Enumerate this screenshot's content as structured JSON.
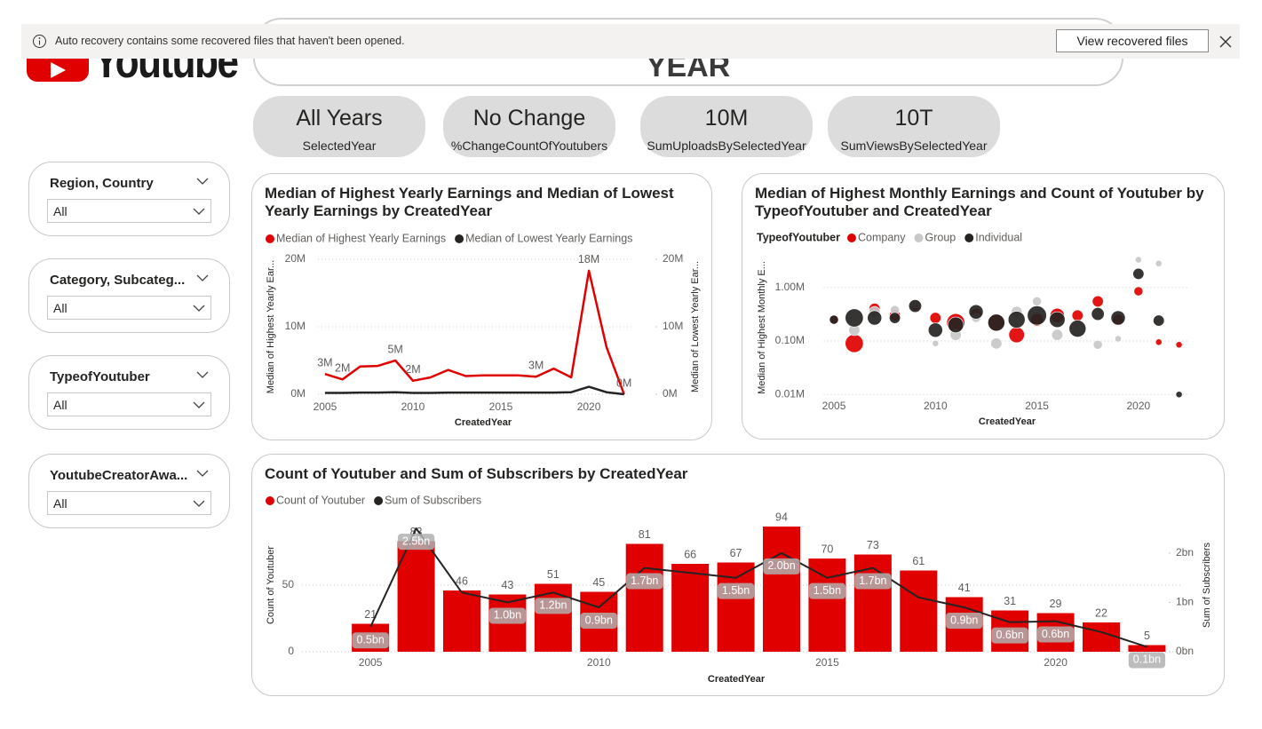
{
  "notification": {
    "message": "Auto recovery contains some recovered files that haven't been opened.",
    "button": "View recovered files"
  },
  "logo": {
    "text": "Youtube"
  },
  "header": {
    "title": "YEAR"
  },
  "cards": [
    {
      "value": "All Years",
      "label": "SelectedYear"
    },
    {
      "value": "No Change",
      "label": "%ChangeCountOfYoutubers"
    },
    {
      "value": "10M",
      "label": "SumUploadsBySelectedYear"
    },
    {
      "value": "10T",
      "label": "SumViewsBySelectedYear"
    }
  ],
  "slicers": [
    {
      "title": "Region, Country",
      "selection": "All"
    },
    {
      "title": "Category, Subcateg...",
      "selection": "All"
    },
    {
      "title": "TypeofYoutuber",
      "selection": "All"
    },
    {
      "title": "YoutubeCreatorAwa...",
      "selection": "All"
    }
  ],
  "chart_data": [
    {
      "type": "line",
      "title": "Median of Highest Yearly Earnings and Median of Lowest Yearly Earnings by CreatedYear",
      "x": [
        2005,
        2006,
        2007,
        2008,
        2009,
        2010,
        2011,
        2012,
        2013,
        2014,
        2015,
        2016,
        2017,
        2018,
        2019,
        2020,
        2021,
        2022
      ],
      "series": [
        {
          "name": "Median of Highest Yearly Earnings",
          "color": "#e00000",
          "values": [
            3000000,
            2200000,
            4100000,
            4200000,
            5000000,
            2000000,
            2500000,
            3600000,
            2700000,
            2800000,
            2800000,
            2800000,
            2600000,
            3800000,
            2500000,
            18300000,
            7000000,
            0
          ],
          "value_labels": [
            "3M",
            "2M",
            null,
            null,
            "5M",
            "2M",
            null,
            null,
            null,
            null,
            null,
            null,
            "3M",
            null,
            null,
            "18M",
            null,
            "0M"
          ]
        },
        {
          "name": "Median of Lowest Yearly Earnings",
          "color": "#252423",
          "axis": "y2",
          "values": [
            200000,
            200000,
            250000,
            250000,
            300000,
            200000,
            200000,
            250000,
            250000,
            250000,
            250000,
            250000,
            250000,
            250000,
            300000,
            1100000,
            300000,
            0
          ]
        }
      ],
      "xlim": [
        2004.6,
        2022.4
      ],
      "xticks": [
        2005,
        2010,
        2015,
        2020
      ],
      "ylim": [
        0,
        20000000
      ],
      "yticks": [
        {
          "value": 0,
          "label": "0M"
        },
        {
          "value": 10000000,
          "label": "10M"
        },
        {
          "value": 20000000,
          "label": "20M"
        }
      ],
      "y2lim": [
        0,
        20000000
      ],
      "y2ticks": [
        {
          "value": 0,
          "label": "0M"
        },
        {
          "value": 10000000,
          "label": "10M"
        },
        {
          "value": 20000000,
          "label": "20M"
        }
      ],
      "xlabel": "CreatedYear",
      "ylabel": "Median of Highest Yearly Ear...",
      "y2label": "Median of Lowest Yearly Ear...",
      "grid": true
    },
    {
      "type": "scatter",
      "title": "Median of Highest Monthly Earnings and Count of Youtuber by TypeofYoutuber and CreatedYear",
      "legend_title": "TypeofYoutuber",
      "series": [
        {
          "name": "Company",
          "color": "#e00000",
          "x": [
            2005,
            2006,
            2007,
            2008,
            2009,
            2010,
            2011,
            2012,
            2013,
            2014,
            2015,
            2016,
            2017,
            2018,
            2019,
            2020,
            2021,
            2022
          ],
          "values": [
            250000,
            90000,
            400000,
            300000,
            450000,
            270000,
            220000,
            320000,
            220000,
            130000,
            250000,
            300000,
            300000,
            550000,
            250000,
            850000,
            95000,
            85000
          ],
          "sizes": [
            2,
            8,
            3,
            3,
            2,
            3,
            8,
            3,
            7,
            6,
            4,
            5,
            3,
            3,
            3,
            2,
            1,
            1
          ]
        },
        {
          "name": "Group",
          "color": "#c8c8c8",
          "x": [
            2006,
            2007,
            2008,
            2009,
            2010,
            2011,
            2012,
            2013,
            2014,
            2015,
            2016,
            2018,
            2019,
            2020,
            2021
          ],
          "values": [
            160000,
            350000,
            380000,
            500000,
            90000,
            130000,
            270000,
            90000,
            350000,
            550000,
            130000,
            85000,
            110000,
            3300000,
            2800000
          ],
          "sizes": [
            3,
            3,
            2,
            2,
            1,
            3,
            2,
            3,
            3,
            2,
            3,
            2,
            1,
            1,
            1
          ]
        },
        {
          "name": "Individual",
          "color": "#252423",
          "x": [
            2005,
            2006,
            2007,
            2008,
            2009,
            2010,
            2011,
            2012,
            2013,
            2014,
            2015,
            2016,
            2017,
            2018,
            2019,
            2020,
            2021,
            2022
          ],
          "values": [
            250000,
            270000,
            270000,
            270000,
            450000,
            160000,
            200000,
            350000,
            220000,
            250000,
            300000,
            250000,
            170000,
            320000,
            270000,
            1800000,
            240000,
            10000
          ],
          "sizes": [
            2,
            8,
            5,
            3,
            4,
            5,
            6,
            5,
            7,
            7,
            9,
            6,
            7,
            4,
            5,
            3,
            3,
            1
          ]
        }
      ],
      "xlim": [
        2004.5,
        2022.5
      ],
      "xticks": [
        2005,
        2010,
        2015,
        2020
      ],
      "ylim": [
        9000,
        3500000
      ],
      "log_y": true,
      "yticks": [
        {
          "value": 10000,
          "label": "0.01M"
        },
        {
          "value": 100000,
          "label": "0.10M"
        },
        {
          "value": 1000000,
          "label": "1.00M"
        }
      ],
      "xlabel": "CreatedYear",
      "ylabel": "Median of Highest Monthly E...",
      "grid": true
    },
    {
      "type": "combo",
      "title": "Count of Youtuber and Sum of Subscribers by CreatedYear",
      "x": [
        2005,
        2006,
        2007,
        2008,
        2009,
        2010,
        2011,
        2012,
        2013,
        2014,
        2015,
        2016,
        2017,
        2018,
        2019,
        2020,
        2021,
        2022
      ],
      "series": [
        {
          "name": "Count of Youtuber",
          "color": "#e00000",
          "values": [
            21,
            83,
            46,
            43,
            51,
            45,
            81,
            66,
            67,
            94,
            70,
            73,
            61,
            41,
            31,
            29,
            22,
            5
          ]
        },
        {
          "name": "Sum of Subscribers",
          "color": "#252423",
          "axis": "y2",
          "values": [
            500000000,
            2500000000,
            1200000000,
            1000000000,
            1200000000,
            900000000,
            1700000000,
            1600000000,
            1500000000,
            2000000000,
            1500000000,
            1700000000,
            1100000000,
            900000000,
            600000000,
            620000000,
            400000000,
            100000000
          ],
          "value_labels": [
            "0.5bn",
            "2.5bn",
            null,
            "1.0bn",
            "1.2bn",
            "0.9bn",
            "1.7bn",
            null,
            "1.5bn",
            "2.0bn",
            "1.5bn",
            "1.7bn",
            null,
            "0.9bn",
            "0.6bn",
            "0.6bn",
            null,
            "0.1bn"
          ]
        }
      ],
      "xlim": [
        2003.5,
        2022.75
      ],
      "xticks": [
        2005,
        2010,
        2015,
        2020
      ],
      "ylim": [
        0,
        100
      ],
      "yticks": [
        0,
        50
      ],
      "y2lim": [
        0,
        2700000000
      ],
      "y2ticks": [
        {
          "value": 0,
          "label": "0bn"
        },
        {
          "value": 1000000000,
          "label": "1bn"
        },
        {
          "value": 2000000000,
          "label": "2bn"
        }
      ],
      "xlabel": "CreatedYear",
      "ylabel": "Count of Youtuber",
      "y2label": "Sum of Subscribers",
      "grid": true
    }
  ]
}
